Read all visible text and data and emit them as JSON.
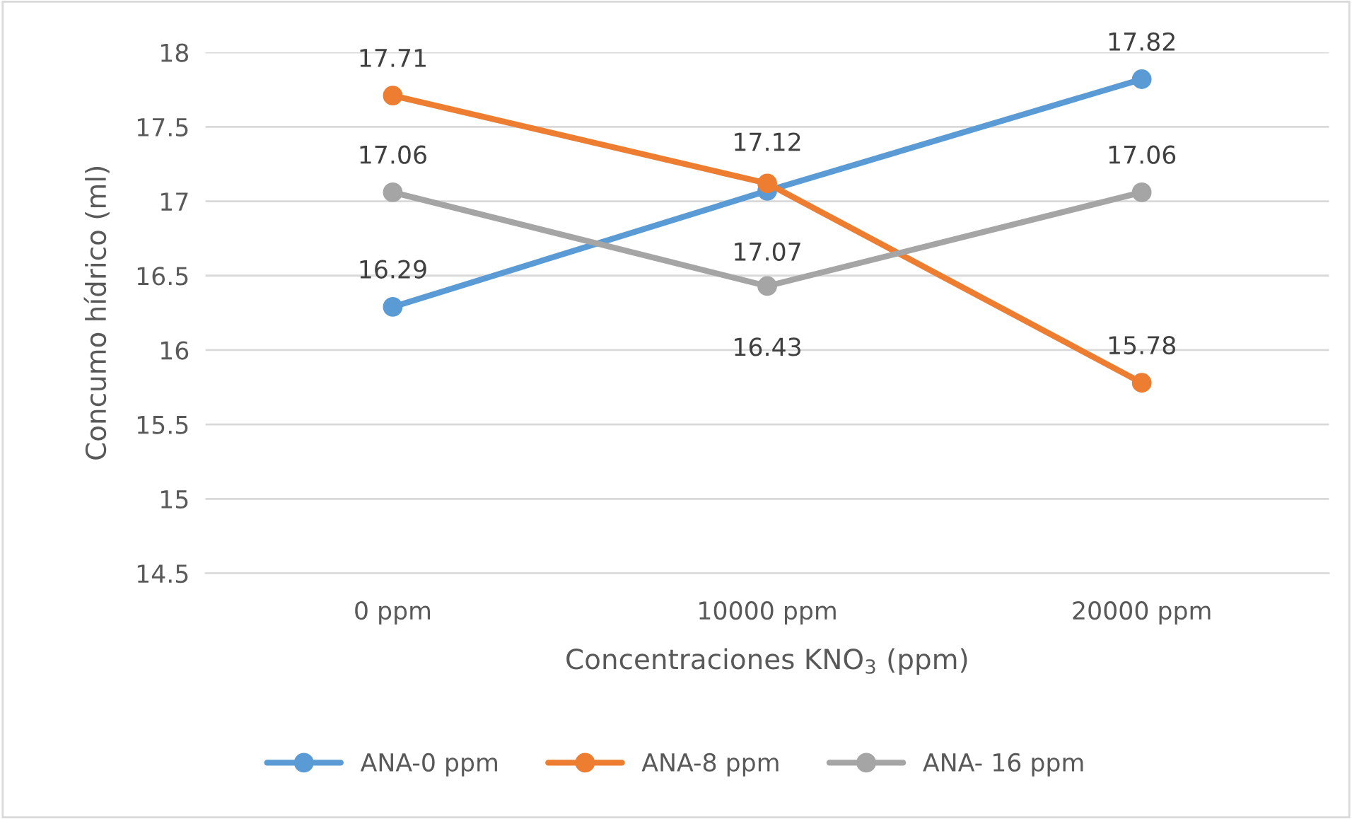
{
  "chart_data": {
    "type": "line",
    "xlabel": "Concentraciones KNO$_{3}$ (ppm)",
    "ylabel": "Concumo hídrico (ml)",
    "categories": [
      "0 ppm",
      "10000 ppm",
      "20000 ppm"
    ],
    "series": [
      {
        "name": "ANA-0 ppm",
        "color": "#5b9bd5",
        "values": [
          16.29,
          17.07,
          17.82
        ]
      },
      {
        "name": "ANA-8 ppm",
        "color": "#ed7d31",
        "values": [
          17.71,
          17.12,
          15.78
        ]
      },
      {
        "name": "ANA- 16 ppm",
        "color": "#a5a5a5",
        "values": [
          17.06,
          16.43,
          17.06
        ]
      }
    ],
    "ylim": [
      14.5,
      18
    ],
    "yticks": [
      14.5,
      15,
      15.5,
      16,
      16.5,
      17,
      17.5,
      18
    ],
    "grid": "y",
    "legend": "bottom",
    "marker": "circle",
    "line_style": "solid",
    "data_labels": true
  }
}
